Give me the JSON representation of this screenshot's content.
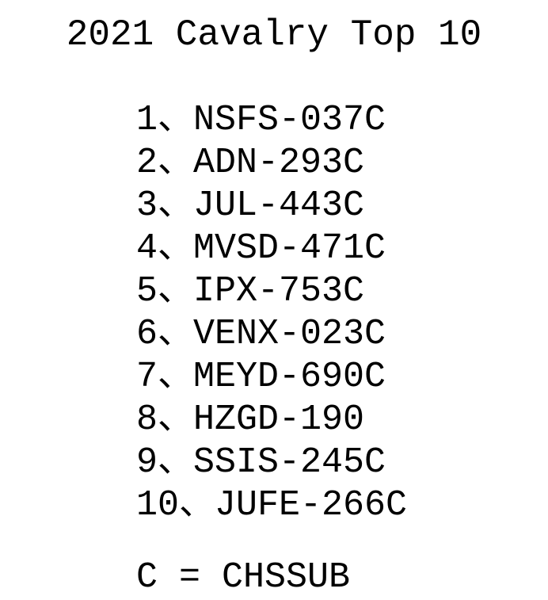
{
  "title": "2021 Cavalry Top 10",
  "items": [
    "1、NSFS-037C",
    "2、ADN-293C",
    "3、JUL-443C",
    "4、MVSD-471C",
    "5、IPX-753C",
    "6、VENX-023C",
    "7、MEYD-690C",
    "8、HZGD-190",
    "9、SSIS-245C",
    "10、JUFE-266C"
  ],
  "footer": "C = CHSSUB"
}
